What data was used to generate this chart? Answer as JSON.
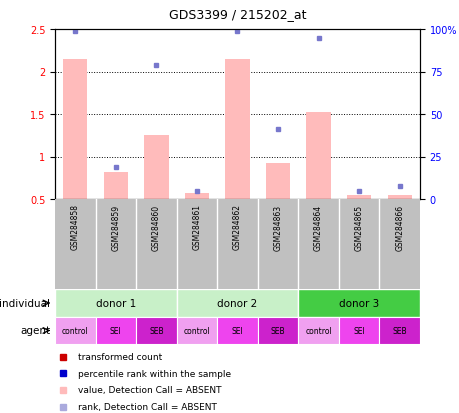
{
  "title": "GDS3399 / 215202_at",
  "samples": [
    "GSM284858",
    "GSM284859",
    "GSM284860",
    "GSM284861",
    "GSM284862",
    "GSM284863",
    "GSM284864",
    "GSM284865",
    "GSM284866"
  ],
  "bar_values": [
    2.15,
    0.82,
    1.25,
    0.57,
    2.15,
    0.92,
    1.52,
    0.55,
    0.55
  ],
  "dot_values": [
    2.48,
    0.88,
    2.08,
    0.6,
    2.48,
    1.32,
    2.4,
    0.6,
    0.65
  ],
  "bar_color": "#ffbbbb",
  "dot_color": "#7777cc",
  "ylim_left": [
    0.5,
    2.5
  ],
  "ylim_right": [
    0,
    100
  ],
  "yticks_left": [
    0.5,
    1.0,
    1.5,
    2.0,
    2.5
  ],
  "ytick_labels_left": [
    "0.5",
    "1",
    "1.5",
    "2",
    "2.5"
  ],
  "yticks_right": [
    0,
    25,
    50,
    75,
    100
  ],
  "ytick_labels_right": [
    "0",
    "25",
    "50",
    "75",
    "100%"
  ],
  "donor_labels": [
    "donor 1",
    "donor 2",
    "donor 3"
  ],
  "donor_starts": [
    0,
    3,
    6
  ],
  "donor_ends": [
    3,
    6,
    9
  ],
  "donor_colors": [
    "#c8f0c8",
    "#c8f0c8",
    "#44cc44"
  ],
  "agents": [
    "control",
    "SEI",
    "SEB",
    "control",
    "SEI",
    "SEB",
    "control",
    "SEI",
    "SEB"
  ],
  "agent_color_map": {
    "control": "#f0a0f0",
    "SEI": "#ee44ee",
    "SEB": "#cc22cc"
  },
  "legend_items": [
    {
      "label": "transformed count",
      "color": "#cc0000"
    },
    {
      "label": "percentile rank within the sample",
      "color": "#0000cc"
    },
    {
      "label": "value, Detection Call = ABSENT",
      "color": "#ffbbbb"
    },
    {
      "label": "rank, Detection Call = ABSENT",
      "color": "#aaaadd"
    }
  ],
  "individual_label": "individual",
  "agent_label": "agent",
  "sample_bg_color": "#c0c0c0",
  "plot_bg_color": "#ffffff",
  "grid_yticks": [
    1.0,
    1.5,
    2.0
  ]
}
